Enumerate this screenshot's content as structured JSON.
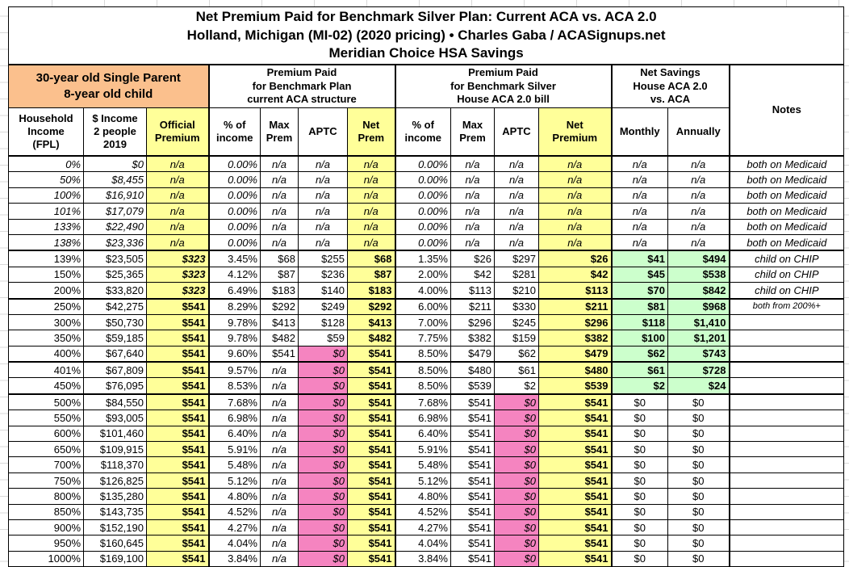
{
  "title": {
    "line1": "Net Premium Paid for Benchmark Silver Plan: Current ACA vs. ACA 2.0",
    "line2": "Holland, Michigan (MI-02) (2020 pricing) • Charles Gaba / ACASignups.net",
    "line3": "Meridian Choice HSA Savings"
  },
  "colors": {
    "orange": "#FBC08D",
    "yellow": "#FFFF99",
    "pink": "#F584C0",
    "green": "#CCFFCC",
    "border": "#000000"
  },
  "header": {
    "demographic": "30-year old Single Parent\n8-year old child",
    "group_aca": "Premium Paid\nfor Benchmark Plan\ncurrent ACA structure",
    "group_aca2": "Premium Paid\nfor Benchmark Silver\nHouse ACA 2.0 bill",
    "group_savings": "Net Savings\nHouse ACA 2.0\nvs. ACA",
    "notes": "Notes",
    "cols": {
      "fpl": "Household\nIncome\n(FPL)",
      "income": "$ Income\n2 people\n2019",
      "official": "Official\nPremium",
      "pct1": "% of\nincome",
      "max1": "Max\nPrem",
      "aptc1": "APTC",
      "net1": "Net\nPrem",
      "pct2": "% of\nincome",
      "max2": "Max\nPrem",
      "aptc2": "APTC",
      "net2": "Net\nPremium",
      "monthly": "Monthly",
      "annually": "Annually"
    }
  },
  "rows": [
    {
      "fpl": "0%",
      "income": "$0",
      "official": "n/a",
      "pct1": "0.00%",
      "max1": "n/a",
      "aptc1": "n/a",
      "net1": "n/a",
      "pct2": "0.00%",
      "max2": "n/a",
      "aptc2": "n/a",
      "net2": "n/a",
      "monthly": "n/a",
      "annually": "n/a",
      "note": "both on Medicaid",
      "medicaid": true
    },
    {
      "fpl": "50%",
      "income": "$8,455",
      "official": "n/a",
      "pct1": "0.00%",
      "max1": "n/a",
      "aptc1": "n/a",
      "net1": "n/a",
      "pct2": "0.00%",
      "max2": "n/a",
      "aptc2": "n/a",
      "net2": "n/a",
      "monthly": "n/a",
      "annually": "n/a",
      "note": "both on Medicaid",
      "medicaid": true
    },
    {
      "fpl": "100%",
      "income": "$16,910",
      "official": "n/a",
      "pct1": "0.00%",
      "max1": "n/a",
      "aptc1": "n/a",
      "net1": "n/a",
      "pct2": "0.00%",
      "max2": "n/a",
      "aptc2": "n/a",
      "net2": "n/a",
      "monthly": "n/a",
      "annually": "n/a",
      "note": "both on Medicaid",
      "medicaid": true
    },
    {
      "fpl": "101%",
      "income": "$17,079",
      "official": "n/a",
      "pct1": "0.00%",
      "max1": "n/a",
      "aptc1": "n/a",
      "net1": "n/a",
      "pct2": "0.00%",
      "max2": "n/a",
      "aptc2": "n/a",
      "net2": "n/a",
      "monthly": "n/a",
      "annually": "n/a",
      "note": "both on Medicaid",
      "medicaid": true
    },
    {
      "fpl": "133%",
      "income": "$22,490",
      "official": "n/a",
      "pct1": "0.00%",
      "max1": "n/a",
      "aptc1": "n/a",
      "net1": "n/a",
      "pct2": "0.00%",
      "max2": "n/a",
      "aptc2": "n/a",
      "net2": "n/a",
      "monthly": "n/a",
      "annually": "n/a",
      "note": "both on Medicaid",
      "medicaid": true
    },
    {
      "fpl": "138%",
      "income": "$23,336",
      "official": "n/a",
      "pct1": "0.00%",
      "max1": "n/a",
      "aptc1": "n/a",
      "net1": "n/a",
      "pct2": "0.00%",
      "max2": "n/a",
      "aptc2": "n/a",
      "net2": "n/a",
      "monthly": "n/a",
      "annually": "n/a",
      "note": "both on Medicaid",
      "medicaid": true,
      "thick": true
    },
    {
      "fpl": "139%",
      "income": "$23,505",
      "official": "$323",
      "official_italic": true,
      "pct1": "3.45%",
      "max1": "$68",
      "aptc1": "$255",
      "net1": "$68",
      "pct2": "1.35%",
      "max2": "$26",
      "aptc2": "$297",
      "net2": "$26",
      "monthly": "$41",
      "annually": "$494",
      "green": true,
      "note": "child on CHIP"
    },
    {
      "fpl": "150%",
      "income": "$25,365",
      "official": "$323",
      "official_italic": true,
      "pct1": "4.12%",
      "max1": "$87",
      "aptc1": "$236",
      "net1": "$87",
      "pct2": "2.00%",
      "max2": "$42",
      "aptc2": "$281",
      "net2": "$42",
      "monthly": "$45",
      "annually": "$538",
      "green": true,
      "note": "child on CHIP"
    },
    {
      "fpl": "200%",
      "income": "$33,820",
      "official": "$323",
      "official_italic": true,
      "pct1": "6.49%",
      "max1": "$183",
      "aptc1": "$140",
      "net1": "$183",
      "pct2": "4.00%",
      "max2": "$113",
      "aptc2": "$210",
      "net2": "$113",
      "monthly": "$70",
      "annually": "$842",
      "green": true,
      "note": "child on CHIP",
      "thick": true
    },
    {
      "fpl": "250%",
      "income": "$42,275",
      "official": "$541",
      "pct1": "8.29%",
      "max1": "$292",
      "aptc1": "$249",
      "net1": "$292",
      "pct2": "6.00%",
      "max2": "$211",
      "aptc2": "$330",
      "net2": "$211",
      "monthly": "$81",
      "annually": "$968",
      "green": true,
      "note": "both from 200%+",
      "note_small": true
    },
    {
      "fpl": "300%",
      "income": "$50,730",
      "official": "$541",
      "pct1": "9.78%",
      "max1": "$413",
      "aptc1": "$128",
      "net1": "$413",
      "pct2": "7.00%",
      "max2": "$296",
      "aptc2": "$245",
      "net2": "$296",
      "monthly": "$118",
      "annually": "$1,410",
      "green": true,
      "note": ""
    },
    {
      "fpl": "350%",
      "income": "$59,185",
      "official": "$541",
      "pct1": "9.78%",
      "max1": "$482",
      "aptc1": "$59",
      "net1": "$482",
      "pct2": "7.75%",
      "max2": "$382",
      "aptc2": "$159",
      "net2": "$382",
      "monthly": "$100",
      "annually": "$1,201",
      "green": true,
      "note": ""
    },
    {
      "fpl": "400%",
      "income": "$67,640",
      "official": "$541",
      "pct1": "9.60%",
      "max1": "$541",
      "aptc1": "$0",
      "p1": true,
      "net1": "$541",
      "pct2": "8.50%",
      "max2": "$479",
      "aptc2": "$62",
      "net2": "$479",
      "monthly": "$62",
      "annually": "$743",
      "green": true,
      "note": "",
      "thick": true
    },
    {
      "fpl": "401%",
      "income": "$67,809",
      "official": "$541",
      "pct1": "9.57%",
      "max1": "n/a",
      "aptc1": "$0",
      "p1": true,
      "net1": "$541",
      "pct2": "8.50%",
      "max2": "$480",
      "aptc2": "$61",
      "net2": "$480",
      "monthly": "$61",
      "annually": "$728",
      "green": true,
      "note": ""
    },
    {
      "fpl": "450%",
      "income": "$76,095",
      "official": "$541",
      "pct1": "8.53%",
      "max1": "n/a",
      "aptc1": "$0",
      "p1": true,
      "net1": "$541",
      "pct2": "8.50%",
      "max2": "$539",
      "aptc2": "$2",
      "net2": "$539",
      "monthly": "$2",
      "annually": "$24",
      "green": true,
      "note": "",
      "thick": true
    },
    {
      "fpl": "500%",
      "income": "$84,550",
      "official": "$541",
      "pct1": "7.68%",
      "max1": "n/a",
      "aptc1": "$0",
      "p1": true,
      "net1": "$541",
      "pct2": "7.68%",
      "max2": "$541",
      "aptc2": "$0",
      "p2": true,
      "net2": "$541",
      "monthly": "$0",
      "annually": "$0",
      "note": ""
    },
    {
      "fpl": "550%",
      "income": "$93,005",
      "official": "$541",
      "pct1": "6.98%",
      "max1": "n/a",
      "aptc1": "$0",
      "p1": true,
      "net1": "$541",
      "pct2": "6.98%",
      "max2": "$541",
      "aptc2": "$0",
      "p2": true,
      "net2": "$541",
      "monthly": "$0",
      "annually": "$0",
      "note": ""
    },
    {
      "fpl": "600%",
      "income": "$101,460",
      "official": "$541",
      "pct1": "6.40%",
      "max1": "n/a",
      "aptc1": "$0",
      "p1": true,
      "net1": "$541",
      "pct2": "6.40%",
      "max2": "$541",
      "aptc2": "$0",
      "p2": true,
      "net2": "$541",
      "monthly": "$0",
      "annually": "$0",
      "note": ""
    },
    {
      "fpl": "650%",
      "income": "$109,915",
      "official": "$541",
      "pct1": "5.91%",
      "max1": "n/a",
      "aptc1": "$0",
      "p1": true,
      "net1": "$541",
      "pct2": "5.91%",
      "max2": "$541",
      "aptc2": "$0",
      "p2": true,
      "net2": "$541",
      "monthly": "$0",
      "annually": "$0",
      "note": ""
    },
    {
      "fpl": "700%",
      "income": "$118,370",
      "official": "$541",
      "pct1": "5.48%",
      "max1": "n/a",
      "aptc1": "$0",
      "p1": true,
      "net1": "$541",
      "pct2": "5.48%",
      "max2": "$541",
      "aptc2": "$0",
      "p2": true,
      "net2": "$541",
      "monthly": "$0",
      "annually": "$0",
      "note": ""
    },
    {
      "fpl": "750%",
      "income": "$126,825",
      "official": "$541",
      "pct1": "5.12%",
      "max1": "n/a",
      "aptc1": "$0",
      "p1": true,
      "net1": "$541",
      "pct2": "5.12%",
      "max2": "$541",
      "aptc2": "$0",
      "p2": true,
      "net2": "$541",
      "monthly": "$0",
      "annually": "$0",
      "note": ""
    },
    {
      "fpl": "800%",
      "income": "$135,280",
      "official": "$541",
      "pct1": "4.80%",
      "max1": "n/a",
      "aptc1": "$0",
      "p1": true,
      "net1": "$541",
      "pct2": "4.80%",
      "max2": "$541",
      "aptc2": "$0",
      "p2": true,
      "net2": "$541",
      "monthly": "$0",
      "annually": "$0",
      "note": ""
    },
    {
      "fpl": "850%",
      "income": "$143,735",
      "official": "$541",
      "pct1": "4.52%",
      "max1": "n/a",
      "aptc1": "$0",
      "p1": true,
      "net1": "$541",
      "pct2": "4.52%",
      "max2": "$541",
      "aptc2": "$0",
      "p2": true,
      "net2": "$541",
      "monthly": "$0",
      "annually": "$0",
      "note": ""
    },
    {
      "fpl": "900%",
      "income": "$152,190",
      "official": "$541",
      "pct1": "4.27%",
      "max1": "n/a",
      "aptc1": "$0",
      "p1": true,
      "net1": "$541",
      "pct2": "4.27%",
      "max2": "$541",
      "aptc2": "$0",
      "p2": true,
      "net2": "$541",
      "monthly": "$0",
      "annually": "$0",
      "note": ""
    },
    {
      "fpl": "950%",
      "income": "$160,645",
      "official": "$541",
      "pct1": "4.04%",
      "max1": "n/a",
      "aptc1": "$0",
      "p1": true,
      "net1": "$541",
      "pct2": "4.04%",
      "max2": "$541",
      "aptc2": "$0",
      "p2": true,
      "net2": "$541",
      "monthly": "$0",
      "annually": "$0",
      "note": ""
    },
    {
      "fpl": "1000%",
      "income": "$169,100",
      "official": "$541",
      "pct1": "3.84%",
      "max1": "n/a",
      "aptc1": "$0",
      "p1": true,
      "net1": "$541",
      "pct2": "3.84%",
      "max2": "$541",
      "aptc2": "$0",
      "p2": true,
      "net2": "$541",
      "monthly": "$0",
      "annually": "$0",
      "note": ""
    }
  ]
}
